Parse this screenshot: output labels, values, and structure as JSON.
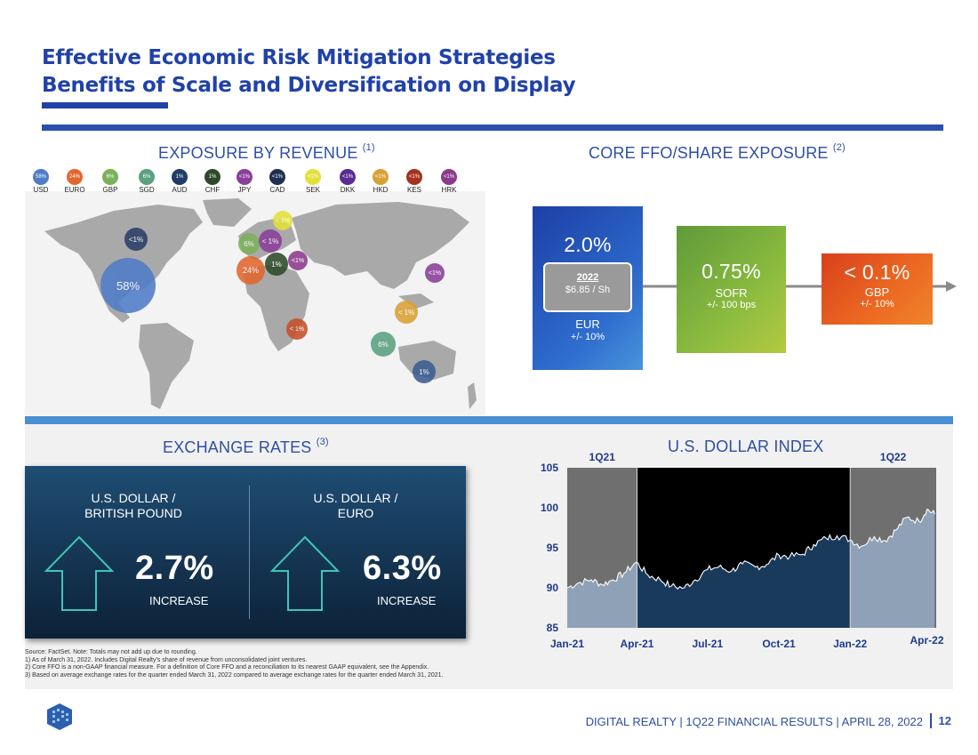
{
  "title": {
    "line1": "Effective Economic Risk Mitigation Strategies",
    "line2": "Benefits of Scale and Diversification on Display"
  },
  "revenue": {
    "heading": "EXPOSURE BY REVENUE",
    "footnote_ref": "(1)",
    "legend": [
      {
        "pct": "58%",
        "code": "USD",
        "color": "#4f7cc7"
      },
      {
        "pct": "24%",
        "code": "EURO",
        "color": "#e3662f"
      },
      {
        "pct": "6%",
        "code": "GBP",
        "color": "#7bb15a"
      },
      {
        "pct": "6%",
        "code": "SGD",
        "color": "#5aa17f"
      },
      {
        "pct": "1%",
        "code": "AUD",
        "color": "#1f3d68"
      },
      {
        "pct": "1%",
        "code": "CHF",
        "color": "#2e4a2a"
      },
      {
        "pct": "<1%",
        "code": "JPY",
        "color": "#8a3f9a"
      },
      {
        "pct": "<1%",
        "code": "CAD",
        "color": "#1e2f52"
      },
      {
        "pct": "<1%",
        "code": "SEK",
        "color": "#e3e03a"
      },
      {
        "pct": "<1%",
        "code": "DKK",
        "color": "#5a2c91"
      },
      {
        "pct": "<1%",
        "code": "HKD",
        "color": "#d9a034"
      },
      {
        "pct": "<1%",
        "code": "KES",
        "color": "#a3331e"
      },
      {
        "pct": "<1%",
        "code": "HRK",
        "color": "#8c3b8c"
      }
    ],
    "bubbles": [
      {
        "label": "58%",
        "color": "#4f7cc7"
      },
      {
        "label": "<1%",
        "color": "#2a3f66"
      },
      {
        "label": "< 1%",
        "color": "#e3e03a"
      },
      {
        "label": "6%",
        "color": "#7bb15a"
      },
      {
        "label": "< 1%",
        "color": "#8a3f9a"
      },
      {
        "label": "24%",
        "color": "#e3662f"
      },
      {
        "label": "1%",
        "color": "#2e4a2a"
      },
      {
        "label": "<1%",
        "color": "#8c3b8c"
      },
      {
        "label": "<1%",
        "color": "#8a3f9a"
      },
      {
        "label": "< 1%",
        "color": "#d9a034"
      },
      {
        "label": "< 1%",
        "color": "#c4512a"
      },
      {
        "label": "6%",
        "color": "#5aa17f"
      },
      {
        "label": "1%",
        "color": "#3a5f8f"
      }
    ]
  },
  "ffo": {
    "heading": "CORE FFO/SHARE EXPOSURE",
    "footnote_ref": "(2)",
    "eur": {
      "pct": "2.0%",
      "year": "2022",
      "value": "$6.85 / Sh",
      "name": "EUR",
      "range": "+/- 10%"
    },
    "sofr": {
      "pct": "0.75%",
      "name": "SOFR",
      "range": "+/- 100 bps"
    },
    "gbp": {
      "pct": "< 0.1%",
      "name": "GBP",
      "range": "+/- 10%"
    }
  },
  "fx": {
    "heading": "EXCHANGE RATES",
    "footnote_ref": "(3)",
    "left": {
      "line1": "U.S. DOLLAR /",
      "line2": "BRITISH POUND",
      "value": "2.7%",
      "label": "INCREASE"
    },
    "right": {
      "line1": "U.S. DOLLAR /",
      "line2": "EURO",
      "value": "6.3%",
      "label": "INCREASE"
    }
  },
  "chart_data": {
    "type": "area",
    "title": "U.S. DOLLAR INDEX",
    "period_labels": [
      "1Q21",
      "1Q22"
    ],
    "ylim": [
      85,
      105
    ],
    "yticks": [
      85,
      90,
      95,
      100,
      105
    ],
    "xticks": [
      "Jan-21",
      "Apr-21",
      "Jul-21",
      "Oct-21",
      "Jan-22",
      "Apr-22"
    ],
    "series": [
      {
        "values": [
          {
            "x": "2021-01-01",
            "y": 90.0
          },
          {
            "x": "2021-01-15",
            "y": 90.6
          },
          {
            "x": "2021-02-01",
            "y": 91.0
          },
          {
            "x": "2021-02-15",
            "y": 90.4
          },
          {
            "x": "2021-03-01",
            "y": 91.0
          },
          {
            "x": "2021-03-15",
            "y": 91.8
          },
          {
            "x": "2021-03-31",
            "y": 93.2
          },
          {
            "x": "2021-04-15",
            "y": 91.6
          },
          {
            "x": "2021-05-01",
            "y": 91.0
          },
          {
            "x": "2021-05-15",
            "y": 90.2
          },
          {
            "x": "2021-06-01",
            "y": 90.0
          },
          {
            "x": "2021-06-15",
            "y": 91.0
          },
          {
            "x": "2021-07-01",
            "y": 92.3
          },
          {
            "x": "2021-07-15",
            "y": 92.6
          },
          {
            "x": "2021-08-01",
            "y": 92.1
          },
          {
            "x": "2021-08-15",
            "y": 93.0
          },
          {
            "x": "2021-09-01",
            "y": 92.6
          },
          {
            "x": "2021-09-15",
            "y": 92.9
          },
          {
            "x": "2021-10-01",
            "y": 94.1
          },
          {
            "x": "2021-10-15",
            "y": 93.9
          },
          {
            "x": "2021-11-01",
            "y": 94.2
          },
          {
            "x": "2021-11-15",
            "y": 95.4
          },
          {
            "x": "2021-12-01",
            "y": 96.2
          },
          {
            "x": "2021-12-15",
            "y": 96.5
          },
          {
            "x": "2022-01-01",
            "y": 96.0
          },
          {
            "x": "2022-01-15",
            "y": 95.2
          },
          {
            "x": "2022-02-01",
            "y": 96.4
          },
          {
            "x": "2022-02-15",
            "y": 95.9
          },
          {
            "x": "2022-03-01",
            "y": 97.2
          },
          {
            "x": "2022-03-15",
            "y": 98.8
          },
          {
            "x": "2022-03-31",
            "y": 98.3
          },
          {
            "x": "2022-04-10",
            "y": 99.8
          },
          {
            "x": "2022-04-20",
            "y": 99.2
          }
        ]
      }
    ]
  },
  "footnotes": {
    "source": "Source: FactSet. Note: Totals may not add up due to rounding.",
    "n1": "1) As of March 31, 2022. Includes Digital Realty’s share of revenue from unconsolidated joint ventures.",
    "n2": "2) Core FFO is a non-GAAP financial measure. For a definition of Core FFO and a reconciliation to its nearest GAAP equivalent, see the Appendix.",
    "n3": "3) Based on average exchange rates for the quarter ended March 31, 2022 compared to average exchange rates for the quarter ended March 31, 2021."
  },
  "footer": {
    "text": "DIGITAL REALTY | 1Q22 FINANCIAL RESULTS | APRIL 28, 2022",
    "page": "12"
  }
}
